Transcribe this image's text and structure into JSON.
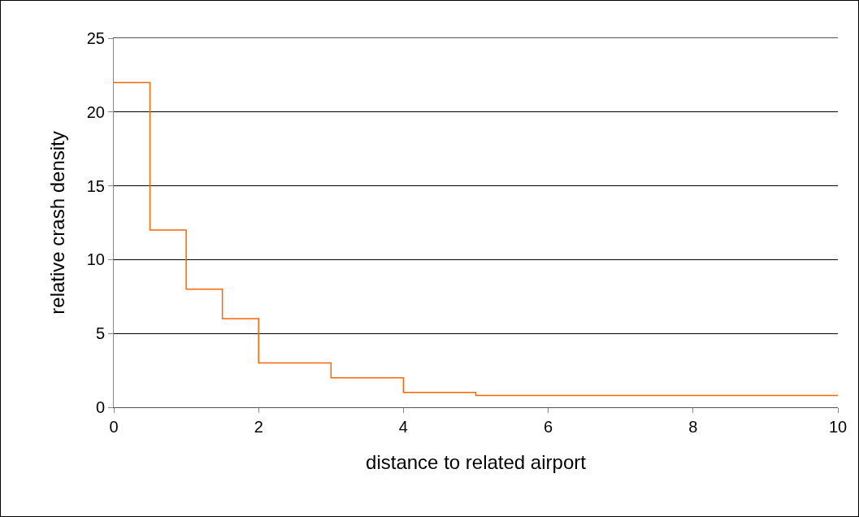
{
  "chart_data": {
    "type": "step",
    "xlabel": "distance to related airport",
    "ylabel": "relative crash density",
    "x": [
      0,
      0.5,
      1,
      1.5,
      2,
      3,
      4,
      5,
      10
    ],
    "series": [
      {
        "color": "#ff6600",
        "values": [
          22,
          12,
          8,
          6,
          3,
          2,
          1,
          0.8,
          0.8
        ]
      }
    ],
    "xlim": [
      0,
      10
    ],
    "xticks": [
      0,
      2,
      4,
      6,
      8,
      10
    ],
    "ylim": [
      0,
      25
    ],
    "yticks": [
      0,
      5,
      10,
      15,
      20,
      25
    ],
    "grid": "y",
    "marker": "none",
    "line_style": "solid"
  }
}
